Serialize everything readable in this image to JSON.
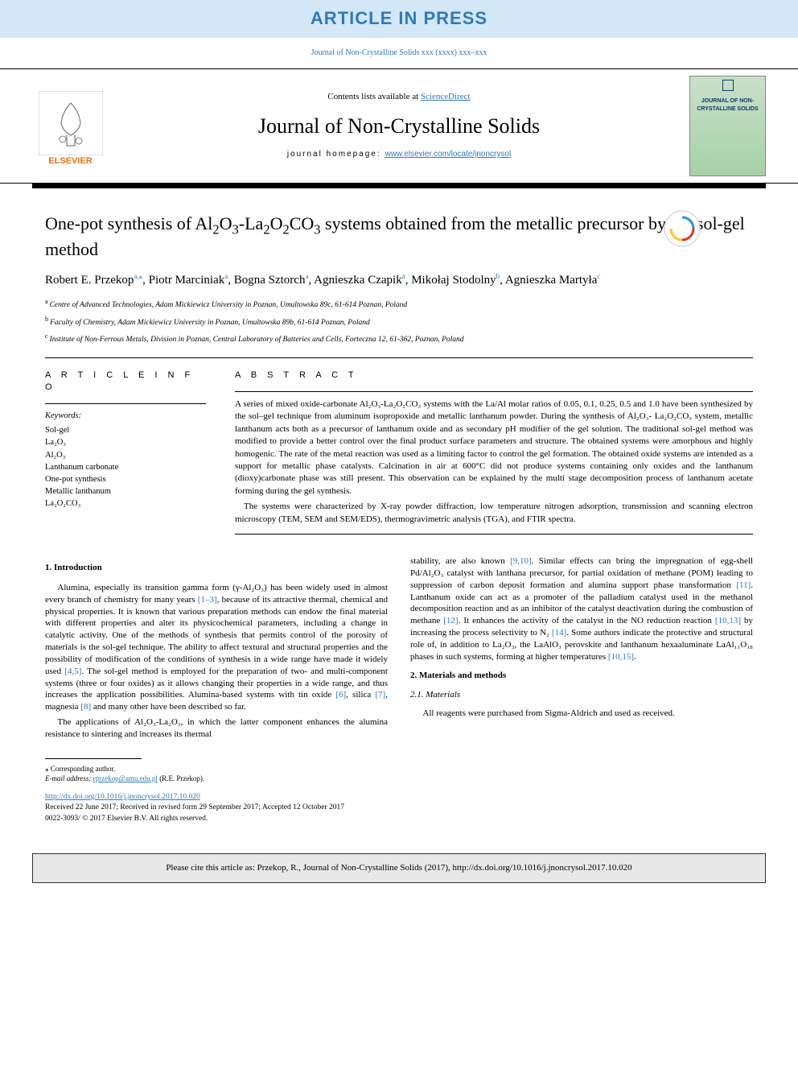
{
  "banner": "ARTICLE IN PRESS",
  "journal_ref": "Journal of Non-Crystalline Solids xxx (xxxx) xxx–xxx",
  "masthead": {
    "contents_prefix": "Contents lists available at ",
    "contents_link": "ScienceDirect",
    "journal_title": "Journal of Non-Crystalline Solids",
    "homepage_prefix": "journal homepage: ",
    "homepage_link": "www.elsevier.com/locate/jnoncrysol",
    "publisher_label": "ELSEVIER",
    "cover_text": "JOURNAL OF NON-CRYSTALLINE SOLIDS"
  },
  "title_parts": {
    "p1": "One-pot synthesis of Al",
    "p2": "O",
    "p3": "-La",
    "p4": "O",
    "p5": "CO",
    "p6": " systems obtained from the metallic precursor by the sol-gel method"
  },
  "authors": [
    {
      "name": "Robert E. Przekop",
      "affil": "a",
      "corresponding": true
    },
    {
      "name": "Piotr Marciniak",
      "affil": "a"
    },
    {
      "name": "Bogna Sztorch",
      "affil": "a"
    },
    {
      "name": "Agnieszka Czapik",
      "affil": "a"
    },
    {
      "name": "Mikołaj Stodolny",
      "affil": "b"
    },
    {
      "name": "Agnieszka Martyła",
      "affil": "c"
    }
  ],
  "affiliations": [
    {
      "key": "a",
      "text": "Centre of Advanced Technologies, Adam Mickiewicz University in Poznan, Umultowska 89c, 61-614 Poznan, Poland"
    },
    {
      "key": "b",
      "text": "Faculty of Chemistry, Adam Mickiewicz University in Poznan, Umultowska 89b, 61-614 Poznan, Poland"
    },
    {
      "key": "c",
      "text": "Institute of Non-Ferrous Metals, Division in Poznan, Central Laboratory of Batteries and Cells, Forteczna 12, 61-362, Poznan, Poland"
    }
  ],
  "article_info_label": "A R T I C L E  I N F O",
  "keywords_label": "Keywords:",
  "keywords": [
    "Sol-gel",
    "La₂O₃",
    "Al₂O₃",
    "Lanthanum carbonate",
    "One-pot synthesis",
    "Metallic lanthanum",
    "La₂O₂CO₃"
  ],
  "abstract_label": "A B S T R A C T",
  "abstract_p1": "A series of mixed oxide-carbonate Al₂O₃-La₂O₂CO₃ systems with the La/Al molar ratios of 0.05, 0.1, 0.25, 0.5 and 1.0 have been synthesized by the sol–gel technique from aluminum isopropoxide and metallic lanthanum powder. During the synthesis of Al₂O₃- La₂O₂CO₃ system, metallic lanthanum acts both as a precursor of lanthanum oxide and as secondary pH modifier of the gel solution. The traditional sol-gel method was modified to provide a better control over the final product surface parameters and structure. The obtained systems were amorphous and highly homogenic. The rate of the metal reaction was used as a limiting factor to control the gel formation. The obtained oxide systems are intended as a support for metallic phase catalysts. Calcination in air at 600°C did not produce systems containing only oxides and the lanthanum (dioxy)carbonate phase was still present. This observation can be explained by the multi stage decomposition process of lanthanum acetate forming during the gel synthesis.",
  "abstract_p2": "The systems were characterized by X-ray powder diffraction, low temperature nitrogen adsorption, transmission and scanning electron microscopy (TEM, SEM and SEM/EDS), thermogravimetric analysis (TGA), and FTIR spectra.",
  "sections": {
    "intro_heading": "1. Introduction",
    "intro_p1a": "Alumina, especially its transition gamma form (γ-Al₂O₃) has been widely used in almost every branch of chemistry for many years ",
    "intro_ref1": "[1–3]",
    "intro_p1b": ", because of its attractive thermal, chemical and physical properties. It is known that various preparation methods can endow the final material with different properties and alter its physicochemical parameters, including a change in catalytic activity. One of the methods of synthesis that permits control of the porosity of materials is the sol-gel technique. The ability to affect textural and structural properties and the possibility of modification of the conditions of synthesis in a wide range have made it widely used ",
    "intro_ref2": "[4,5]",
    "intro_p1c": ". The sol-gel method is employed for the preparation of two- and multi-component systems (three or four oxides) as it allows changing their properties in a wide range, and thus increases the application possibilities. Alumina-based systems with tin oxide ",
    "intro_ref3": "[6]",
    "intro_p1d": ", silica ",
    "intro_ref4": "[7]",
    "intro_p1e": ", magnesia ",
    "intro_ref5": "[8]",
    "intro_p1f": " and many other have been described so far.",
    "intro_p2a": "The applications of Al₂O₃-La₂O₃, in which the latter component enhances the alumina resistance to sintering and increases its thermal",
    "col2_p1a": "stability, are also known ",
    "col2_ref1": "[9,10]",
    "col2_p1b": ". Similar effects can bring the impregnation of egg-shell Pd/Al₂O₃ catalyst with lanthana precursor, for partial oxidation of methane (POM) leading to suppression of carbon deposit formation and alumina support phase transformation ",
    "col2_ref2": "[11]",
    "col2_p1c": ". Lanthanum oxide can act as a promoter of the palladium catalyst used in the methanol decomposition reaction and as an inhibitor of the catalyst deactivation during the combustion of methane ",
    "col2_ref3": "[12]",
    "col2_p1d": ". It enhances the activity of the catalyst in the NO reduction reaction ",
    "col2_ref4": "[10,13]",
    "col2_p1e": " by increasing the process selectivity to N₂ ",
    "col2_ref5": "[14]",
    "col2_p1f": ". Some authors indicate the protective and structural role of, in addition to La₂O₃, the LaAlO₃ perovskite and lanthanum hexaaluminate LaAl₁₁O₁₈ phases in such systems, forming at higher temperatures ",
    "col2_ref6": "[10,15]",
    "col2_p1g": ".",
    "methods_heading": "2. Materials and methods",
    "materials_subheading": "2.1. Materials",
    "materials_p1": "All reagents were purchased from Sigma-Aldrich and used as received."
  },
  "footer": {
    "corr_marker": "⁎ Corresponding author.",
    "email_label": "E-mail address: ",
    "email": "rprzekop@amu.edu.pl",
    "email_suffix": " (R.E. Przekop).",
    "doi": "http://dx.doi.org/10.1016/j.jnoncrysol.2017.10.020",
    "received": "Received 22 June 2017; Received in revised form 29 September 2017; Accepted 12 October 2017",
    "copyright": "0022-3093/ © 2017 Elsevier B.V. All rights reserved."
  },
  "cite_box": "Please cite this article as: Przekop, R., Journal of Non-Crystalline Solids (2017), http://dx.doi.org/10.1016/j.jnoncrysol.2017.10.020",
  "colors": {
    "banner_bg": "#d4e7f7",
    "banner_text": "#2f7ab8",
    "link": "#2f7ab8",
    "elsevier_orange": "#e9711c",
    "cite_bg": "#e8e8e8"
  }
}
